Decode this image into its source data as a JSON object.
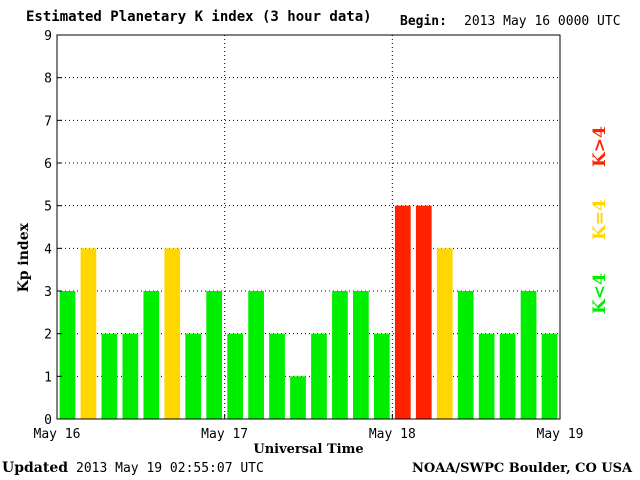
{
  "header": {
    "title": "Estimated Planetary K index (3 hour data)",
    "begin_label": "Begin:",
    "begin_value": "2013 May 16 0000 UTC"
  },
  "footer": {
    "updated_label": "Updated",
    "updated_value": "2013 May 19 02:55:07 UTC",
    "source": "NOAA/SWPC Boulder, CO USA"
  },
  "legend": {
    "low": "K<4",
    "equal": "K=4",
    "high": "K>4"
  },
  "colors": {
    "low": "#00ee00",
    "equal": "#ffd700",
    "high": "#ff2200"
  },
  "chart_data": {
    "type": "bar",
    "xlabel": "Universal Time",
    "ylabel": "Kp index",
    "ylim": [
      0,
      9
    ],
    "y_ticks": [
      "0",
      "1",
      "2",
      "3",
      "4",
      "5",
      "6",
      "7",
      "8",
      "9"
    ],
    "x_ticks": [
      "May 16",
      "May 17",
      "May 18",
      "May 19"
    ],
    "grid": true,
    "values": [
      3,
      4,
      2,
      2,
      3,
      4,
      2,
      3,
      2,
      3,
      2,
      1,
      2,
      3,
      3,
      2,
      5,
      5,
      4,
      3,
      2,
      2,
      3,
      2
    ]
  }
}
